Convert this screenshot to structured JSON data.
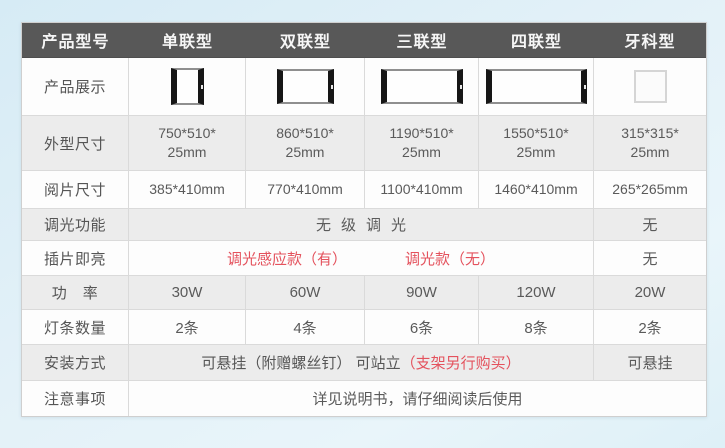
{
  "colors": {
    "page_background": "#dff0f8",
    "header_bg": "#585858",
    "header_text": "#f6f6f6",
    "row_alt_bg": "#ececec",
    "row_bg": "#fdfdfd",
    "border": "#dadada",
    "body_text": "#5a5a5a",
    "accent_red": "#e4525d"
  },
  "table": {
    "header": [
      "产品型号",
      "单联型",
      "双联型",
      "三联型",
      "四联型",
      "牙科型"
    ],
    "rows": {
      "display": {
        "label": "产品展示",
        "panels": [
          "single-panel",
          "double-panel",
          "triple-panel",
          "quad-panel",
          "dental-panel"
        ]
      },
      "outer_size": {
        "label": "外型尺寸",
        "values": [
          "750*510*\n25mm",
          "860*510*\n25mm",
          "1190*510*\n25mm",
          "1550*510*\n25mm",
          "315*315*\n25mm"
        ]
      },
      "view_size": {
        "label": "阅片尺寸",
        "values": [
          "385*410mm",
          "770*410mm",
          "1100*410mm",
          "1460*410mm",
          "265*265mm"
        ]
      },
      "dimming": {
        "label": "调光功能",
        "merged_value": "无级调光",
        "dental_value": "无"
      },
      "plug_light": {
        "label": "插片即亮",
        "option_a": "调光感应款（有）",
        "option_b": "调光款（无）",
        "dental_value": "无"
      },
      "power": {
        "label": "功　率",
        "values": [
          "30W",
          "60W",
          "90W",
          "120W",
          "20W"
        ]
      },
      "light_bars": {
        "label": "灯条数量",
        "values": [
          "2条",
          "4条",
          "6条",
          "8条",
          "2条"
        ]
      },
      "install": {
        "label": "安装方式",
        "text_main": "可悬挂（附赠螺丝钉） 可站立",
        "text_red": "（支架另行购买）",
        "dental_value": "可悬挂"
      },
      "notes": {
        "label": "注意事项",
        "value": "详见说明书，请仔细阅读后使用"
      }
    }
  }
}
